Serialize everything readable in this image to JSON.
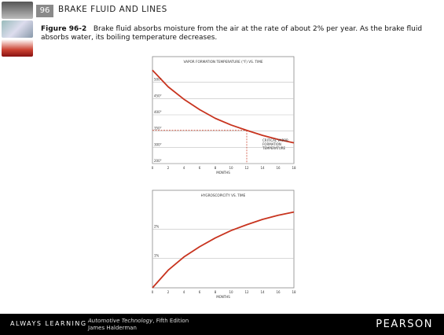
{
  "header": {
    "chapter_number": "96",
    "title": "BRAKE FLUID AND LINES"
  },
  "caption": {
    "figure_label": "Figure 96-2",
    "text": "Brake fluid absorbs moisture from the air at the rate of about 2% per year. As the brake fluid absorbs water, its boiling temperature decreases."
  },
  "footer": {
    "tagline": "ALWAYS LEARNING",
    "book_title": "Automotive Technology",
    "edition": ", Fifth Edition",
    "author": "James Halderman",
    "brand": "PEARSON"
  },
  "colors": {
    "curve": "#c8341f",
    "grid": "#bfbfbf",
    "footer_bg": "#000000"
  },
  "chart_data": [
    {
      "type": "line",
      "title": "VAPOR FORMATION TEMPERATURE (°F) VS. TIME",
      "xlabel": "MONTHS",
      "ylabel": "",
      "x_ticks": [
        "0",
        "2",
        "4",
        "6",
        "8",
        "10",
        "12",
        "14",
        "16",
        "18"
      ],
      "y_ticks": [
        "200°",
        "300°",
        "350°",
        "400°",
        "450°",
        "500°"
      ],
      "annotation": [
        "CRITICAL VAPOR",
        "FORMATION",
        "TEMPERATURE"
      ],
      "critical_month": 12,
      "series": [
        {
          "values": [
            {
              "x": 0,
              "y": 500
            },
            {
              "x": 2,
              "y": 460
            },
            {
              "x": 4,
              "y": 430
            },
            {
              "x": 6,
              "y": 405
            },
            {
              "x": 8,
              "y": 384
            },
            {
              "x": 10,
              "y": 368
            },
            {
              "x": 12,
              "y": 355
            },
            {
              "x": 14,
              "y": 343
            },
            {
              "x": 16,
              "y": 333
            },
            {
              "x": 18,
              "y": 325
            }
          ]
        }
      ]
    },
    {
      "type": "line",
      "title": "HYGROSCOPICITY VS. TIME",
      "xlabel": "MONTHS",
      "ylabel": "",
      "x_ticks": [
        "0",
        "2",
        "4",
        "6",
        "8",
        "10",
        "12",
        "14",
        "16",
        "18"
      ],
      "y_ticks": [
        "1%",
        "2%"
      ],
      "series": [
        {
          "values": [
            {
              "x": 0,
              "y": 0.0
            },
            {
              "x": 2,
              "y": 0.6
            },
            {
              "x": 4,
              "y": 1.05
            },
            {
              "x": 6,
              "y": 1.4
            },
            {
              "x": 8,
              "y": 1.7
            },
            {
              "x": 10,
              "y": 1.95
            },
            {
              "x": 12,
              "y": 2.15
            },
            {
              "x": 14,
              "y": 2.33
            },
            {
              "x": 16,
              "y": 2.47
            },
            {
              "x": 18,
              "y": 2.58
            }
          ]
        }
      ]
    }
  ]
}
